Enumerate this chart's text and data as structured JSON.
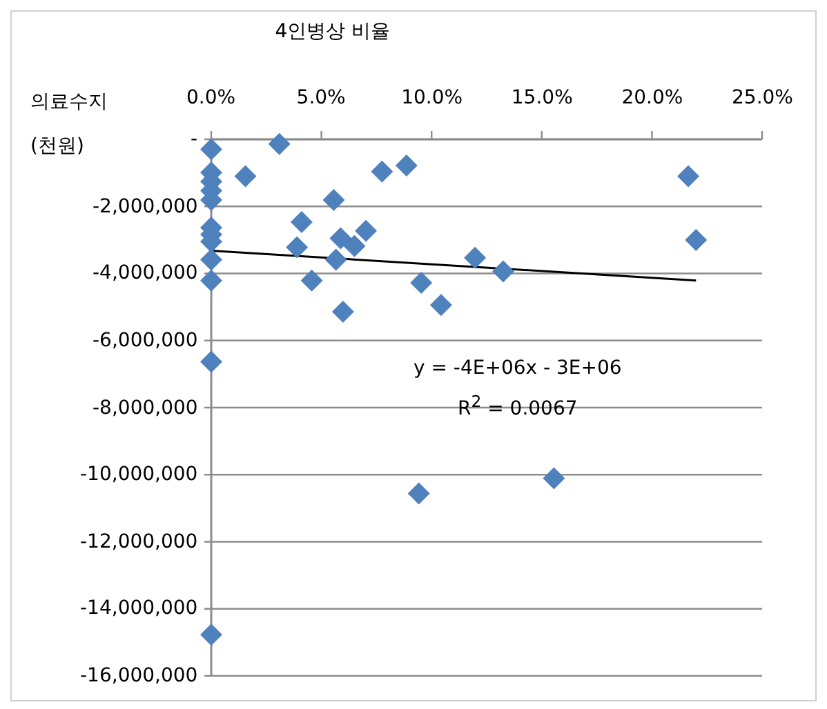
{
  "chart_data": {
    "type": "scatter",
    "xlabel": "4인병상 비율",
    "ylabel": "의료수지 (천원)",
    "annotations": [
      "y = -4E+06x - 3E+06",
      "R$^{2}$ = 0.0067"
    ],
    "xlim": [
      0,
      0.25
    ],
    "xticks": [
      {
        "value": 0,
        "label": "0.0%"
      },
      {
        "value": 0.05,
        "label": "5.0%"
      },
      {
        "value": 0.1,
        "label": "10.0%"
      },
      {
        "value": 0.15,
        "label": "15.0%"
      },
      {
        "value": 0.2,
        "label": "20.0%"
      },
      {
        "value": 0.25,
        "label": "25.0%"
      }
    ],
    "ylim": [
      -16000000,
      0
    ],
    "yticks": [
      {
        "value": 0,
        "label": "-"
      },
      {
        "value": -2000000,
        "label": "-2,000,000"
      },
      {
        "value": -4000000,
        "label": "-4,000,000"
      },
      {
        "value": -6000000,
        "label": "-6,000,000"
      },
      {
        "value": -8000000,
        "label": "-8,000,000"
      },
      {
        "value": -10000000,
        "label": "-10,000,000"
      },
      {
        "value": -12000000,
        "label": "-12,000,000"
      },
      {
        "value": -14000000,
        "label": "-14,000,000"
      },
      {
        "value": -16000000,
        "label": "-16,000,000"
      }
    ],
    "grid": "y",
    "marker": "diamond",
    "series": [
      {
        "color": "#4f81bd",
        "x": [
          0,
          0,
          0,
          0,
          0,
          0,
          0,
          0,
          0,
          0,
          0,
          0,
          0.0155,
          0.0309,
          0.041,
          0.0389,
          0.0456,
          0.0556,
          0.0587,
          0.0566,
          0.0598,
          0.065,
          0.0702,
          0.0775,
          0.0886,
          0.0953,
          0.1043,
          0.1197,
          0.1325,
          0.2165,
          0.22,
          0.0942,
          0.1555
        ],
        "values": [
          -300000,
          -990000,
          -1260000,
          -1530000,
          -1810000,
          -2630000,
          -2840000,
          -3050000,
          -3590000,
          -4210000,
          -6630000,
          -14770000,
          -1100000,
          -140000,
          -2470000,
          -3220000,
          -4210000,
          -1810000,
          -2950000,
          -3590000,
          -5140000,
          -3180000,
          -2730000,
          -960000,
          -780000,
          -4280000,
          -4940000,
          -3530000,
          -3940000,
          -1100000,
          -3000000,
          -10560000,
          -10110000
        ]
      },
      {
        "type": "line",
        "color": "#000000",
        "marker": "none",
        "x": [
          0,
          0.22
        ],
        "values": [
          -3320000,
          -4210000
        ]
      }
    ]
  }
}
